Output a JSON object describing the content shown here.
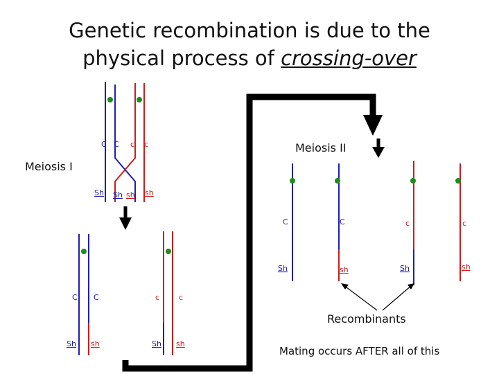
{
  "title": {
    "line1": "Genetic recombination is due to the",
    "line2_prefix": "physical process of ",
    "line2_emphasis": "crossing-over"
  },
  "labels": {
    "meiosis_1": "Meiosis I",
    "meiosis_2": "Meiosis II",
    "recombinants": "Recombinants",
    "mating_note": "Mating occurs AFTER all of this"
  },
  "alleles": {
    "dominant_c": "C",
    "recessive_c": "c",
    "dominant_sh": "Sh",
    "recessive_sh": "sh"
  },
  "colors": {
    "maternal": "#1f1fb0",
    "paternal": "#c81e1e",
    "centromere": "#1e8c1e",
    "arrow": "#000000"
  }
}
